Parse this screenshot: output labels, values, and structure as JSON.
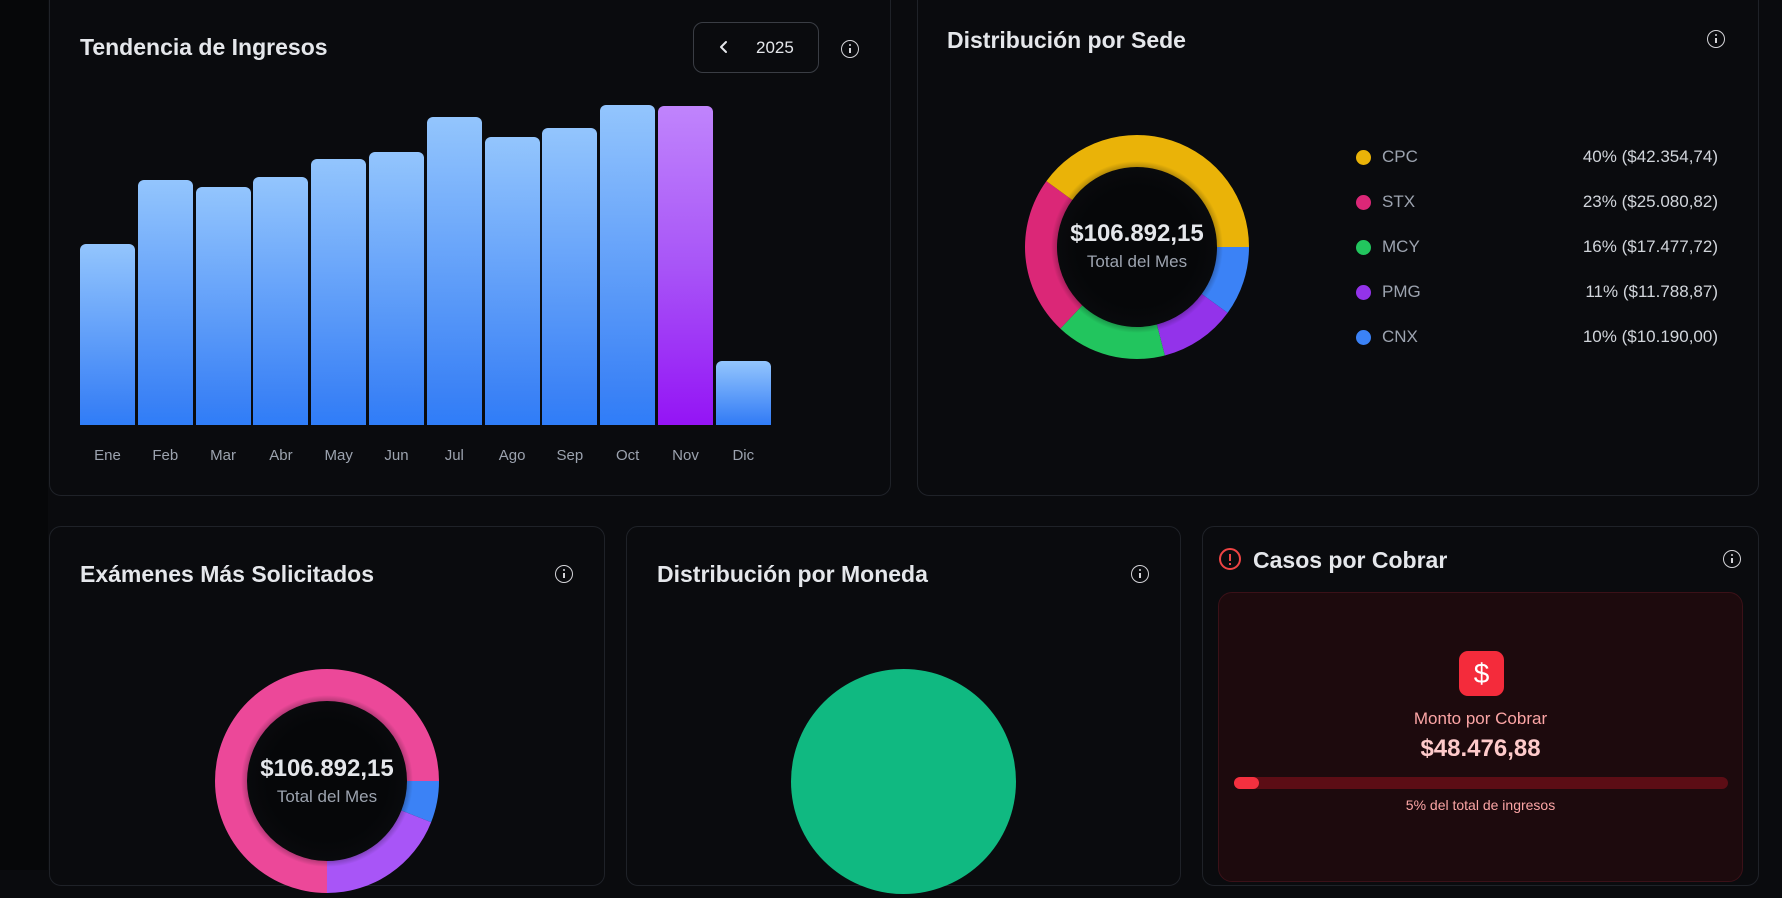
{
  "revenue_trend": {
    "title": "Tendencia de Ingresos",
    "year": "2025",
    "prev_icon": "chevron-left-icon",
    "info_icon": "info-icon"
  },
  "site_distribution": {
    "title": "Distribución por Sede",
    "center_value": "$106.892,15",
    "center_label": "Total del Mes",
    "legend": [
      {
        "label": "CPC",
        "value": "40% ($42.354,74)",
        "color": "#eab308"
      },
      {
        "label": "STX",
        "value": "23% ($25.080,82)",
        "color": "#db2777"
      },
      {
        "label": "MCY",
        "value": "16% ($17.477,72)",
        "color": "#22c55e"
      },
      {
        "label": "PMG",
        "value": "11% ($11.788,87)",
        "color": "#9333ea"
      },
      {
        "label": "CNX",
        "value": "10% ($10.190,00)",
        "color": "#3b82f6"
      }
    ]
  },
  "top_exams": {
    "title": "Exámenes Más Solicitados",
    "center_value": "$106.892,15",
    "center_label": "Total del Mes"
  },
  "currency_distribution": {
    "title": "Distribución por Moneda",
    "color": "#10b981"
  },
  "receivables": {
    "title": "Casos por Cobrar",
    "label": "Monto por Cobrar",
    "amount": "$48.476,88",
    "progress_percent": 5,
    "footnote": "5% del total de ingresos"
  },
  "chart_data": [
    {
      "type": "bar",
      "title": "Tendencia de Ingresos",
      "categories": [
        "Ene",
        "Feb",
        "Mar",
        "Abr",
        "May",
        "Jun",
        "Jul",
        "Ago",
        "Sep",
        "Oct",
        "Nov",
        "Dic"
      ],
      "values": [
        181,
        245,
        238,
        248,
        266,
        273,
        308,
        288,
        297,
        320,
        319,
        64
      ],
      "value_note": "relative bar heights (px), no y-axis shown",
      "highlight_index": 10,
      "colors": {
        "default": "#3b82f6",
        "highlight": "#a855f7"
      },
      "xlabel": "",
      "ylabel": "",
      "grid": false
    },
    {
      "type": "pie",
      "title": "Distribución por Sede",
      "donut": true,
      "categories": [
        "CPC",
        "STX",
        "MCY",
        "PMG",
        "CNX"
      ],
      "values": [
        42354.74,
        25080.82,
        17477.72,
        11788.87,
        10190.0
      ],
      "percents": [
        40,
        23,
        16,
        11,
        10
      ],
      "total": 106892.15
    },
    {
      "type": "pie",
      "title": "Exámenes Más Solicitados",
      "donut": true,
      "series": [
        {
          "name": "pink",
          "color": "#ec4899",
          "percent": 75
        },
        {
          "name": "purple",
          "color": "#a855f7",
          "percent": 19
        },
        {
          "name": "blue",
          "color": "#3b82f6",
          "percent": 6
        }
      ],
      "total": 106892.15
    },
    {
      "type": "pie",
      "title": "Distribución por Moneda",
      "series": [
        {
          "name": "single",
          "color": "#10b981",
          "percent": 100
        }
      ]
    }
  ]
}
